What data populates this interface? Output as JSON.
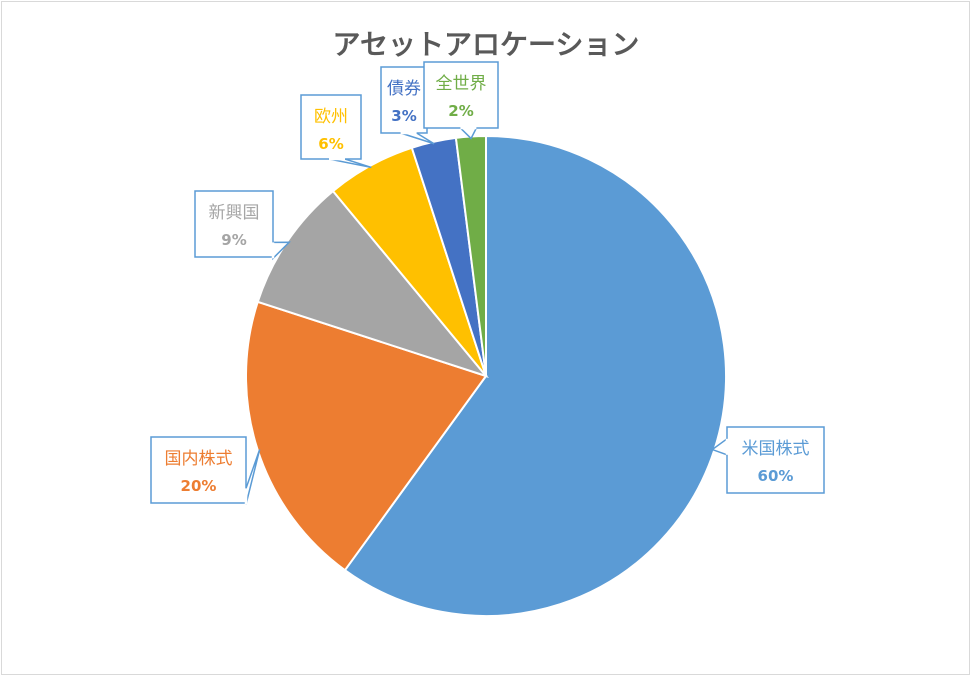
{
  "chart_data": {
    "type": "pie",
    "title": "アセットアロケーション",
    "legend": "none",
    "data_labels": "category name and percentage in callouts",
    "slices": [
      {
        "label": "米国株式",
        "value": 60,
        "percent": "60%",
        "color": "#5b9bd5"
      },
      {
        "label": "国内株式",
        "value": 20,
        "percent": "20%",
        "color": "#ed7d31"
      },
      {
        "label": "新興国",
        "value": 9,
        "percent": "9%",
        "color": "#a5a5a5"
      },
      {
        "label": "欧州",
        "value": 6,
        "percent": "6%",
        "color": "#ffc000"
      },
      {
        "label": "債券",
        "value": 3,
        "percent": "3%",
        "color": "#4472c4"
      },
      {
        "label": "全世界",
        "value": 2,
        "percent": "2%",
        "color": "#70ad47"
      }
    ]
  }
}
